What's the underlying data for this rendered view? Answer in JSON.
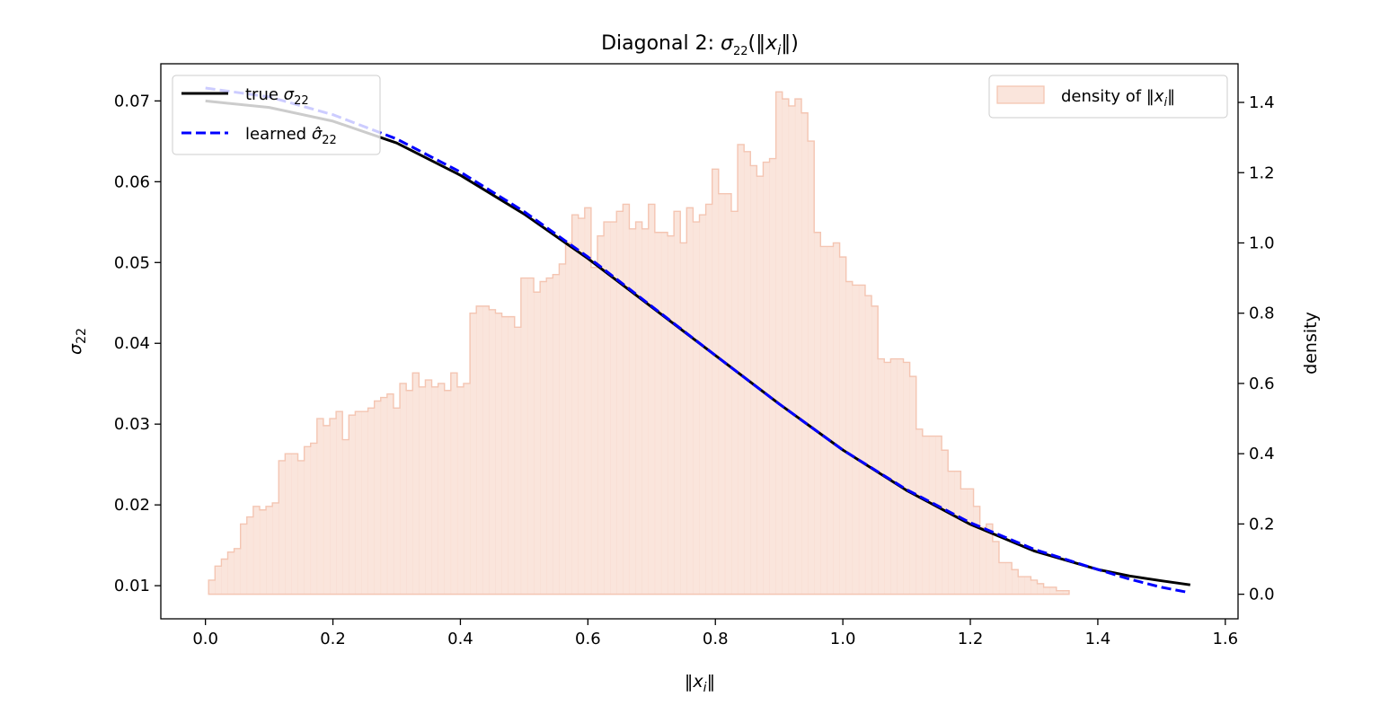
{
  "chart_data": {
    "type": "line",
    "title": {
      "pre": "Diagonal 2: ",
      "sym": "σ",
      "sub": "22",
      "post": "(‖",
      "var": "x",
      "varsub": "i",
      "end": "‖)"
    },
    "xlabel": {
      "pre": "‖",
      "var": "x",
      "sub": "i",
      "post": "‖"
    },
    "ylabel": {
      "sym": "σ",
      "sub": "22"
    },
    "y2label": "density",
    "xlim": [
      -0.07,
      1.62
    ],
    "ylim": [
      0.0059,
      0.0746
    ],
    "y2lim": [
      -0.07,
      1.51
    ],
    "xticks": [
      "0.0",
      "0.2",
      "0.4",
      "0.6",
      "0.8",
      "1.0",
      "1.2",
      "1.4",
      "1.6"
    ],
    "xtick_values": [
      0.0,
      0.2,
      0.4,
      0.6,
      0.8,
      1.0,
      1.2,
      1.4,
      1.6
    ],
    "yticks": [
      "0.01",
      "0.02",
      "0.03",
      "0.04",
      "0.05",
      "0.06",
      "0.07"
    ],
    "ytick_values": [
      0.01,
      0.02,
      0.03,
      0.04,
      0.05,
      0.06,
      0.07
    ],
    "y2ticks": [
      "0.0",
      "0.2",
      "0.4",
      "0.6",
      "0.8",
      "1.0",
      "1.2",
      "1.4"
    ],
    "y2tick_values": [
      0.0,
      0.2,
      0.4,
      0.6,
      0.8,
      1.0,
      1.2,
      1.4
    ],
    "grid": false,
    "legend_left": {
      "placement": "upper-left",
      "entries": [
        {
          "pre": "true ",
          "sym": "σ",
          "sub": "22"
        },
        {
          "pre": "learned ",
          "sym": "σ̂",
          "sub": "22"
        }
      ]
    },
    "legend_right": {
      "placement": "upper-right",
      "entries": [
        {
          "pre": "density of ‖",
          "var": "x",
          "sub": "i",
          "post": "‖"
        }
      ]
    },
    "series": [
      {
        "name": "true σ22",
        "color": "#000000",
        "style": "solid",
        "x": [
          0.0,
          0.1,
          0.2,
          0.3,
          0.4,
          0.5,
          0.6,
          0.7,
          0.8,
          0.9,
          1.0,
          1.1,
          1.2,
          1.3,
          1.4,
          1.45,
          1.5,
          1.545
        ],
        "y": [
          0.07,
          0.0692,
          0.0675,
          0.0648,
          0.0608,
          0.056,
          0.0505,
          0.0445,
          0.0385,
          0.0325,
          0.0268,
          0.0218,
          0.0176,
          0.0143,
          0.012,
          0.0112,
          0.0106,
          0.0101
        ]
      },
      {
        "name": "learned σ̂22",
        "color": "#0000ff",
        "style": "dashed",
        "x": [
          0.0,
          0.1,
          0.2,
          0.3,
          0.4,
          0.5,
          0.6,
          0.7,
          0.8,
          0.9,
          1.0,
          1.1,
          1.2,
          1.3,
          1.4,
          1.45,
          1.5,
          1.54
        ],
        "y": [
          0.0716,
          0.0705,
          0.0683,
          0.0653,
          0.0612,
          0.0563,
          0.0507,
          0.0446,
          0.0385,
          0.0325,
          0.0268,
          0.0219,
          0.0178,
          0.0145,
          0.012,
          0.0108,
          0.0098,
          0.0092
        ]
      }
    ],
    "histogram": {
      "name": "density of ‖xi‖",
      "color": "#f4c5b2",
      "bin_start": 0.005,
      "bin_width": 0.01,
      "densities": [
        0.04,
        0.08,
        0.1,
        0.12,
        0.13,
        0.2,
        0.22,
        0.25,
        0.24,
        0.25,
        0.26,
        0.38,
        0.4,
        0.4,
        0.38,
        0.42,
        0.43,
        0.5,
        0.48,
        0.5,
        0.52,
        0.44,
        0.51,
        0.52,
        0.52,
        0.53,
        0.55,
        0.56,
        0.57,
        0.53,
        0.6,
        0.58,
        0.63,
        0.59,
        0.61,
        0.59,
        0.6,
        0.58,
        0.63,
        0.59,
        0.6,
        0.8,
        0.82,
        0.82,
        0.81,
        0.8,
        0.79,
        0.79,
        0.76,
        0.9,
        0.9,
        0.86,
        0.89,
        0.9,
        0.91,
        0.94,
        1.0,
        1.08,
        1.07,
        1.1,
        0.93,
        1.02,
        1.06,
        1.06,
        1.09,
        1.11,
        1.04,
        1.06,
        1.04,
        1.11,
        1.03,
        1.03,
        1.02,
        1.09,
        1.0,
        1.1,
        1.06,
        1.08,
        1.11,
        1.21,
        1.14,
        1.14,
        1.09,
        1.28,
        1.26,
        1.22,
        1.19,
        1.23,
        1.24,
        1.43,
        1.41,
        1.39,
        1.41,
        1.37,
        1.29,
        1.03,
        0.99,
        0.99,
        1.0,
        0.96,
        0.89,
        0.88,
        0.88,
        0.85,
        0.82,
        0.67,
        0.66,
        0.67,
        0.67,
        0.66,
        0.62,
        0.47,
        0.45,
        0.45,
        0.45,
        0.41,
        0.35,
        0.35,
        0.3,
        0.3,
        0.25,
        0.19,
        0.2,
        0.15,
        0.09,
        0.09,
        0.07,
        0.05,
        0.05,
        0.04,
        0.03,
        0.02,
        0.02,
        0.01,
        0.01
      ]
    }
  }
}
